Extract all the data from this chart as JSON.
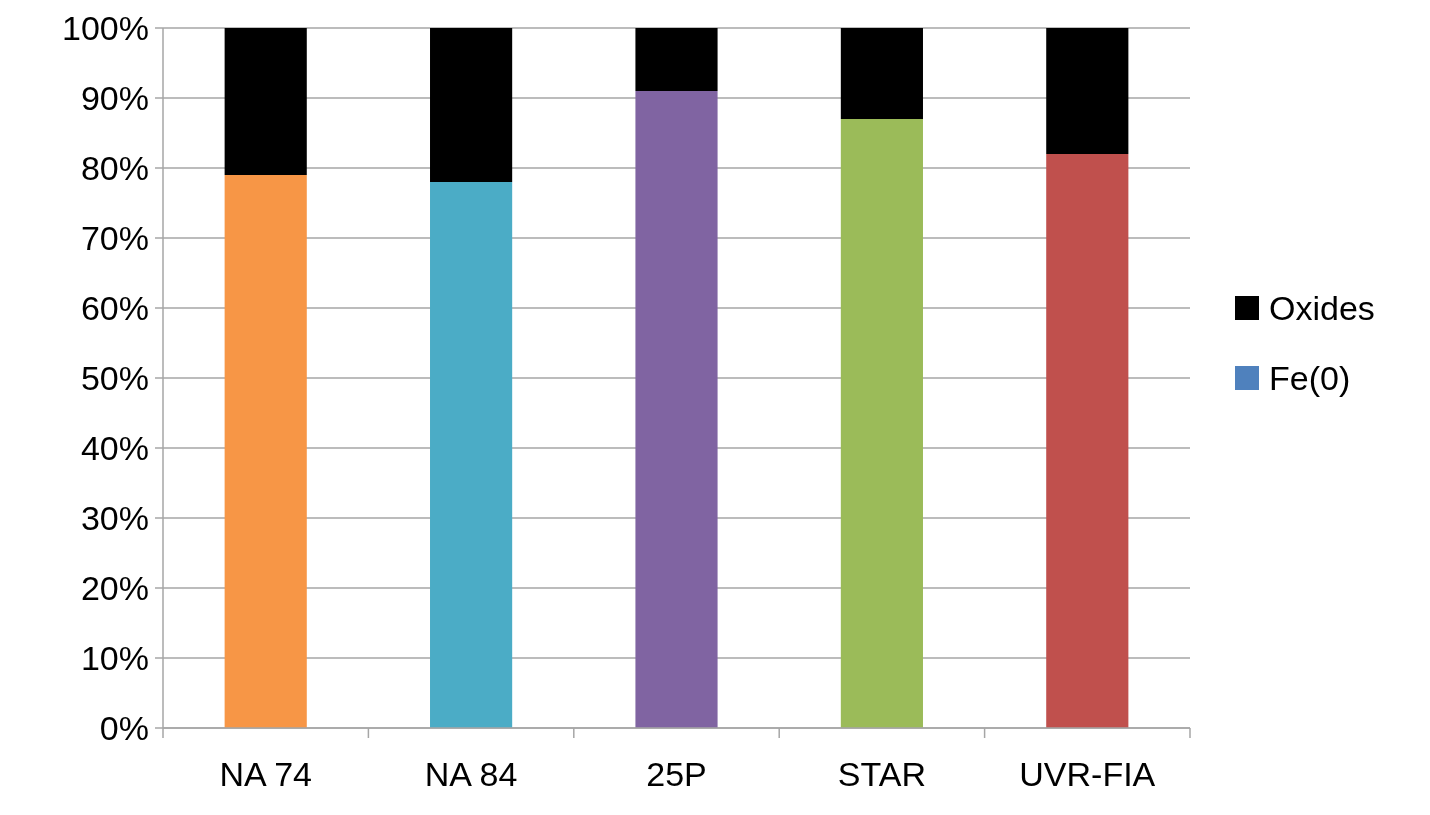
{
  "chart_data": {
    "type": "bar",
    "stacked": true,
    "categories": [
      "NA 74",
      "NA 84",
      "25P",
      "STAR",
      "UVR-FIA"
    ],
    "series": [
      {
        "name": "Fe(0)",
        "color": "#4f81bd",
        "colors": [
          "#f79646",
          "#4bacc6",
          "#8064a2",
          "#9bbb59",
          "#c0504d"
        ],
        "values": [
          79,
          78,
          91,
          87,
          82
        ]
      },
      {
        "name": "Oxides",
        "color": "#000000",
        "values": [
          21,
          22,
          9,
          13,
          18
        ]
      }
    ],
    "ylim": [
      0,
      100
    ],
    "yticks": [
      {
        "value": 0,
        "label": "0%"
      },
      {
        "value": 10,
        "label": "10%"
      },
      {
        "value": 20,
        "label": "20%"
      },
      {
        "value": 30,
        "label": "30%"
      },
      {
        "value": 40,
        "label": "40%"
      },
      {
        "value": 50,
        "label": "50%"
      },
      {
        "value": 60,
        "label": "60%"
      },
      {
        "value": 70,
        "label": "70%"
      },
      {
        "value": 80,
        "label": "80%"
      },
      {
        "value": 90,
        "label": "90%"
      },
      {
        "value": 100,
        "label": "100%"
      }
    ],
    "grid": "y",
    "legend": "right"
  }
}
